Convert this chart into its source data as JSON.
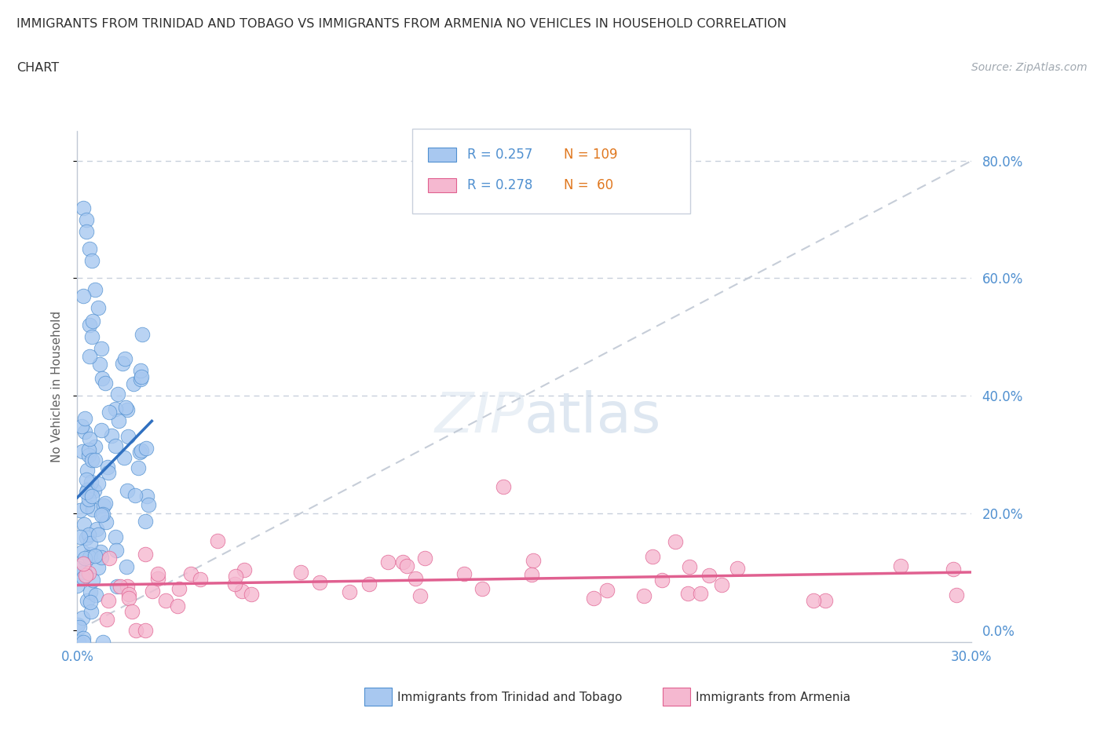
{
  "title_line1": "IMMIGRANTS FROM TRINIDAD AND TOBAGO VS IMMIGRANTS FROM ARMENIA NO VEHICLES IN HOUSEHOLD CORRELATION",
  "title_line2": "CHART",
  "source": "Source: ZipAtlas.com",
  "ylabel": "No Vehicles in Household",
  "ytick_vals": [
    0.0,
    0.2,
    0.4,
    0.6,
    0.8
  ],
  "ytick_labels": [
    "0.0%",
    "20.0%",
    "40.0%",
    "60.0%",
    "80.0%"
  ],
  "xtick_vals": [
    0.0,
    0.3
  ],
  "xtick_labels": [
    "0.0%",
    "30.0%"
  ],
  "xmin": 0.0,
  "xmax": 0.3,
  "ymin": -0.02,
  "ymax": 0.85,
  "legend_r1": "R = 0.257",
  "legend_n1": "N = 109",
  "legend_r2": "R = 0.278",
  "legend_n2": "N =  60",
  "color_tt_fill": "#a8c8f0",
  "color_tt_edge": "#5090d0",
  "color_arm_fill": "#f5b8d0",
  "color_arm_edge": "#e06090",
  "color_tt_line": "#3070c0",
  "color_arm_line": "#e06090",
  "color_diag": "#c0c8d4",
  "color_grid": "#c8d0dc",
  "color_ytick": "#5090d0",
  "color_xtick": "#5090d0",
  "label_tt": "Immigrants from Trinidad and Tobago",
  "label_arm": "Immigrants from Armenia",
  "watermark": "ZIPatlas",
  "title_color": "#303030",
  "ylabel_color": "#606060"
}
